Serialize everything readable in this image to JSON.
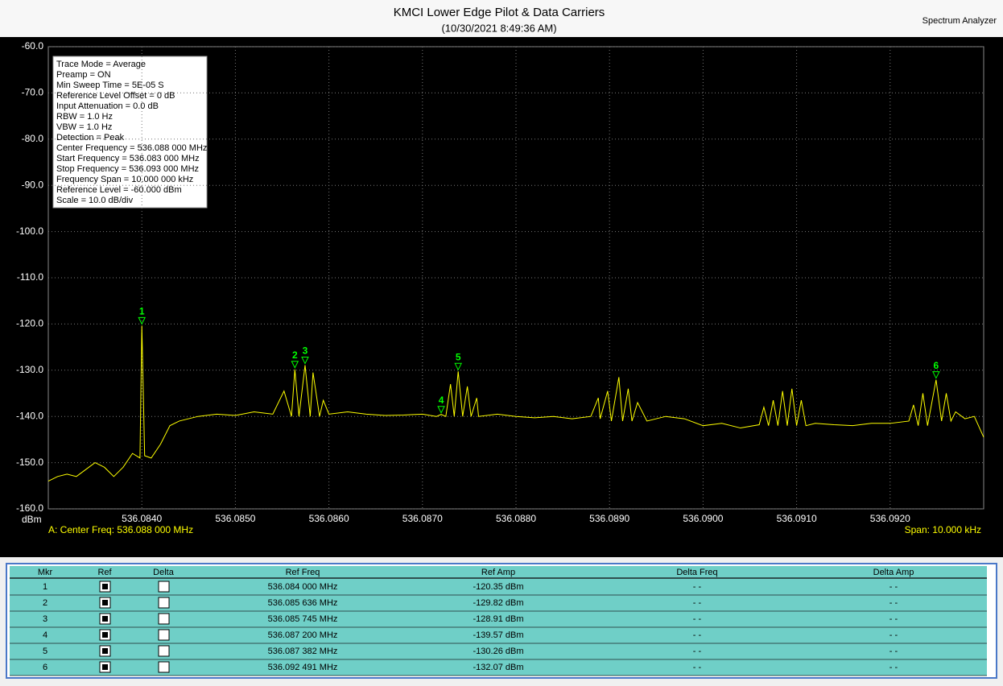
{
  "app_label": "Spectrum Analyzer",
  "chart_data": {
    "type": "line",
    "title": "KMCI Lower Edge Pilot & Data Carriers",
    "subtitle": "(10/30/2021 8:49:36 AM)",
    "y_unit": "dBm",
    "footer_left": "A: Center Freq: 536.088 000 MHz",
    "footer_right": "Span: 10.000 kHz",
    "xlim": [
      536.083,
      536.093
    ],
    "ylim": [
      -160,
      -60
    ],
    "xticks": [
      {
        "value": 536.084,
        "label": "536.0840"
      },
      {
        "value": 536.085,
        "label": "536.0850"
      },
      {
        "value": 536.086,
        "label": "536.0860"
      },
      {
        "value": 536.087,
        "label": "536.0870"
      },
      {
        "value": 536.088,
        "label": "536.0880"
      },
      {
        "value": 536.089,
        "label": "536.0890"
      },
      {
        "value": 536.09,
        "label": "536.0900"
      },
      {
        "value": 536.091,
        "label": "536.0910"
      },
      {
        "value": 536.092,
        "label": "536.0920"
      }
    ],
    "yticks": [
      {
        "value": -60,
        "label": "-60.0"
      },
      {
        "value": -70,
        "label": "-70.0"
      },
      {
        "value": -80,
        "label": "-80.0"
      },
      {
        "value": -90,
        "label": "-90.0"
      },
      {
        "value": -100,
        "label": "-100.0"
      },
      {
        "value": -110,
        "label": "-110.0"
      },
      {
        "value": -120,
        "label": "-120.0"
      },
      {
        "value": -130,
        "label": "-130.0"
      },
      {
        "value": -140,
        "label": "-140.0"
      },
      {
        "value": -150,
        "label": "-150.0"
      },
      {
        "value": -160,
        "label": "-160.0"
      }
    ],
    "grid": true,
    "series": [
      {
        "color": "#ffff00",
        "x": [
          536.083,
          536.0831,
          536.0832,
          536.0833,
          536.0834,
          536.0835,
          536.0836,
          536.0837,
          536.0838,
          536.0839,
          536.08398,
          536.084,
          536.08403,
          536.0841,
          536.0842,
          536.0843,
          536.0844,
          536.0845,
          536.0846,
          536.0848,
          536.085,
          536.0852,
          536.0854,
          536.08552,
          536.0856,
          536.085636,
          536.08568,
          536.085745,
          536.0858,
          536.08583,
          536.0859,
          536.08594,
          536.086,
          536.0862,
          536.0864,
          536.0866,
          536.0868,
          536.087,
          536.08715,
          536.0872,
          536.08725,
          536.0873,
          536.08734,
          536.087382,
          536.08743,
          536.08748,
          536.08752,
          536.08758,
          536.0876,
          536.0878,
          536.088,
          536.0882,
          536.0884,
          536.0886,
          536.0888,
          536.08888,
          536.0889,
          536.08898,
          536.08902,
          536.0891,
          536.08914,
          536.0892,
          536.08924,
          536.0893,
          536.0894,
          536.0896,
          536.0898,
          536.09,
          536.0902,
          536.0904,
          536.0906,
          536.09065,
          536.0907,
          536.09075,
          536.0908,
          536.09085,
          536.0909,
          536.09095,
          536.091,
          536.09105,
          536.0911,
          536.0912,
          536.0914,
          536.0916,
          536.0918,
          536.092,
          536.0922,
          536.09225,
          536.0923,
          536.09235,
          536.0924,
          536.092491,
          536.09255,
          536.0926,
          536.09265,
          536.0927,
          536.0928,
          536.0929,
          536.093
        ],
        "values": [
          -154,
          -153,
          -152.5,
          -153,
          -151.5,
          -150,
          -151,
          -153,
          -151,
          -148,
          -149,
          -120.35,
          -148.5,
          -149,
          -146,
          -142,
          -141,
          -140.5,
          -140,
          -139.5,
          -139.8,
          -139,
          -139.5,
          -134.5,
          -140,
          -129.82,
          -140,
          -128.91,
          -140,
          -130.5,
          -140,
          -136.5,
          -139.5,
          -139,
          -139.5,
          -139.8,
          -139.7,
          -139.5,
          -140,
          -139.57,
          -140,
          -133,
          -140,
          -130.26,
          -140,
          -133.5,
          -140,
          -136,
          -140,
          -139.5,
          -140,
          -140.3,
          -140,
          -140.5,
          -140,
          -136,
          -140.5,
          -134.5,
          -141,
          -131.5,
          -141,
          -134,
          -141,
          -137,
          -141,
          -140,
          -140.5,
          -142,
          -141.5,
          -142.5,
          -141.8,
          -138,
          -142,
          -136.5,
          -142,
          -134.5,
          -142,
          -134,
          -142,
          -136.5,
          -142,
          -141.5,
          -141.8,
          -142,
          -141.5,
          -141.5,
          -141,
          -137.5,
          -142,
          -135,
          -142,
          -132.07,
          -141,
          -135,
          -141,
          -139,
          -140.5,
          -140,
          -144.5
        ]
      }
    ],
    "markers": {
      "labels": [
        "1",
        "2",
        "3",
        "4",
        "5",
        "6"
      ],
      "x": [
        536.084,
        536.085636,
        536.085745,
        536.0872,
        536.087382,
        536.092491
      ],
      "y": [
        -120.35,
        -129.82,
        -128.91,
        -139.57,
        -130.26,
        -132.07
      ],
      "color": "#00ff00"
    }
  },
  "info_box": [
    "Trace Mode = Average",
    "Preamp = ON",
    "Min Sweep Time = 5E-05 S",
    "Reference Level Offset = 0 dB",
    "Input Attenuation = 0.0 dB",
    "RBW = 1.0 Hz",
    "VBW = 1.0 Hz",
    "Detection = Peak",
    "Center Frequency = 536.088 000 MHz",
    "Start Frequency = 536.083 000 MHz",
    "Stop Frequency = 536.093 000 MHz",
    "Frequency Span = 10.000 000 kHz",
    "Reference Level = -60.000  dBm",
    "Scale = 10.0  dB/div"
  ],
  "table": {
    "columns": [
      "Mkr",
      "Ref",
      "Delta",
      "Ref Freq",
      "Ref Amp",
      "Delta Freq",
      "Delta Amp"
    ],
    "rows": [
      [
        "1",
        "536.084 000 MHz",
        "-120.35 dBm",
        "- -",
        "- -"
      ],
      [
        "2",
        "536.085 636 MHz",
        "-129.82 dBm",
        "- -",
        "- -"
      ],
      [
        "3",
        "536.085 745 MHz",
        "-128.91 dBm",
        "- -",
        "- -"
      ],
      [
        "4",
        "536.087 200 MHz",
        "-139.57 dBm",
        "- -",
        "- -"
      ],
      [
        "5",
        "536.087 382 MHz",
        "-130.26 dBm",
        "- -",
        "- -"
      ],
      [
        "6",
        "536.092 491 MHz",
        "-132.07 dBm",
        "- -",
        "- -"
      ]
    ]
  }
}
